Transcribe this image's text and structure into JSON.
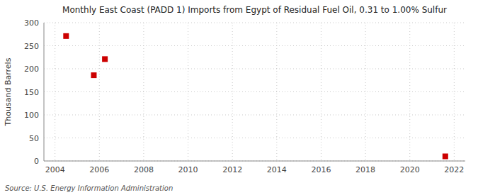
{
  "chart_data": {
    "type": "scatter",
    "title": "Monthly East Coast (PADD 1) Imports from Egypt of Residual Fuel Oil, 0.31 to 1.00% Sulfur",
    "y_label": "Thousand Barrels",
    "annotations": [
      "Source: U.S. Energy Information Administration"
    ],
    "x": [
      2004.5,
      2005.75,
      2006.25,
      2021.6
    ],
    "values": [
      271,
      186,
      221,
      10
    ],
    "color": "#cc0000",
    "marker": "square",
    "xlim": [
      2003.5,
      2022.5
    ],
    "ylim": [
      0,
      300
    ],
    "xticks": [
      2004,
      2006,
      2008,
      2010,
      2012,
      2014,
      2016,
      2018,
      2020,
      2022
    ],
    "yticks": [
      0,
      50,
      100,
      150,
      200,
      250,
      300
    ],
    "grid": true
  }
}
